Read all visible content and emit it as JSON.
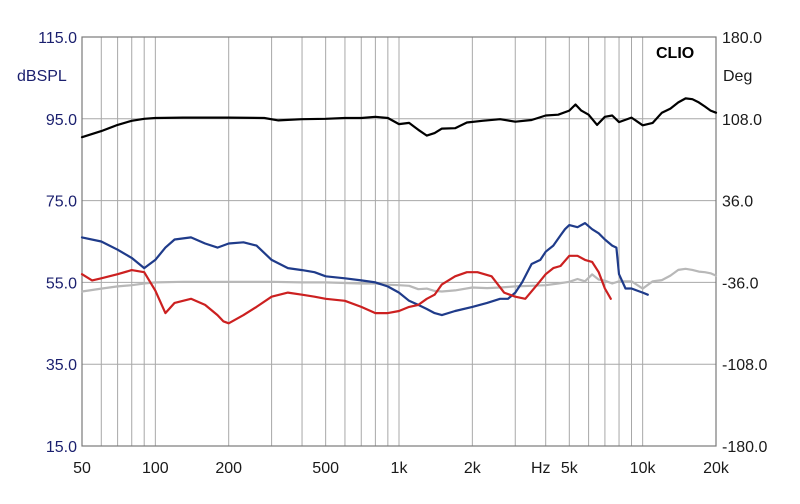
{
  "chart_data": {
    "type": "line",
    "brand_label": "CLIO",
    "x_scale": "log",
    "xlim": [
      50,
      20000
    ],
    "x_ticks": [
      {
        "value": 50,
        "label": "50"
      },
      {
        "value": 100,
        "label": "100"
      },
      {
        "value": 200,
        "label": "200"
      },
      {
        "value": 500,
        "label": "500"
      },
      {
        "value": 1000,
        "label": "1k"
      },
      {
        "value": 2000,
        "label": "2k"
      },
      {
        "value": 5000,
        "label": "5k"
      },
      {
        "value": 10000,
        "label": "10k"
      },
      {
        "value": 20000,
        "label": "20k"
      }
    ],
    "xlabel": "Hz",
    "y_left": {
      "unit": "dBSPL",
      "lim": [
        15,
        115
      ],
      "ticks": [
        "115.0",
        "95.0",
        "75.0",
        "55.0",
        "35.0",
        "15.0"
      ]
    },
    "y_right": {
      "unit": "Deg",
      "lim": [
        -180,
        180
      ],
      "ticks": [
        "180.0",
        "108.0",
        "36.0",
        "-36.0",
        "-108.0",
        "-180.0"
      ]
    },
    "grid": true,
    "colors": {
      "grid": "#a8a8a8",
      "frame": "#7a7a7a",
      "series_black": "#000000",
      "series_blue": "#1f3b8a",
      "series_red": "#cc2020",
      "series_gray": "#b8b8b8"
    },
    "series": [
      {
        "color_key": "series_black",
        "x": [
          50,
          60,
          70,
          80,
          90,
          100,
          130,
          200,
          280,
          320,
          400,
          500,
          600,
          700,
          800,
          900,
          1000,
          1100,
          1200,
          1300,
          1400,
          1500,
          1700,
          1900,
          2200,
          2600,
          3000,
          3500,
          4000,
          4500,
          5000,
          5300,
          5600,
          6000,
          6500,
          7000,
          7500,
          8000,
          9000,
          10000,
          11000,
          12000,
          13000,
          14000,
          15000,
          16000,
          17000,
          18000,
          19000,
          20000
        ],
        "y": [
          90.5,
          92.0,
          93.5,
          94.5,
          95.0,
          95.2,
          95.3,
          95.3,
          95.2,
          94.6,
          94.9,
          95.0,
          95.2,
          95.2,
          95.5,
          95.2,
          93.7,
          94.0,
          92.3,
          90.9,
          91.5,
          92.6,
          92.7,
          94.1,
          94.5,
          94.9,
          94.3,
          94.7,
          95.8,
          96.0,
          97.0,
          98.5,
          97.0,
          96.0,
          93.5,
          95.5,
          95.8,
          94.2,
          95.3,
          93.4,
          94.0,
          96.5,
          97.5,
          99.0,
          100.0,
          99.8,
          99.0,
          98.0,
          97.0,
          96.5
        ]
      },
      {
        "color_key": "series_blue",
        "x": [
          50,
          60,
          70,
          80,
          90,
          100,
          110,
          120,
          140,
          160,
          180,
          200,
          230,
          260,
          300,
          350,
          400,
          450,
          500,
          600,
          700,
          800,
          900,
          1000,
          1100,
          1200,
          1300,
          1400,
          1500,
          1700,
          2000,
          2300,
          2600,
          2800,
          3000,
          3200,
          3500,
          3800,
          4000,
          4300,
          4600,
          4800,
          5000,
          5400,
          5800,
          6200,
          6600,
          7000,
          7500,
          7800,
          8000,
          8500,
          9000,
          9500,
          10000,
          10500
        ],
        "y": [
          66.0,
          65.0,
          63.0,
          61.0,
          58.5,
          60.5,
          63.5,
          65.5,
          66.0,
          64.5,
          63.5,
          64.5,
          64.8,
          64.0,
          60.5,
          58.5,
          58.0,
          57.5,
          56.5,
          56.0,
          55.5,
          55.0,
          54.0,
          52.5,
          50.5,
          49.5,
          48.5,
          47.5,
          47.0,
          48.0,
          49.0,
          50.0,
          51.0,
          51.0,
          52.5,
          55.0,
          59.5,
          60.5,
          62.5,
          64.0,
          66.5,
          68.0,
          69.0,
          68.5,
          69.5,
          68.0,
          67.0,
          65.5,
          64.0,
          63.5,
          57.0,
          53.5,
          53.5,
          53.0,
          52.5,
          52.0
        ]
      },
      {
        "color_key": "series_red",
        "x": [
          50,
          55,
          60,
          70,
          80,
          90,
          100,
          110,
          120,
          140,
          160,
          180,
          190,
          200,
          230,
          260,
          300,
          350,
          400,
          450,
          500,
          600,
          700,
          800,
          900,
          1000,
          1100,
          1200,
          1300,
          1400,
          1500,
          1700,
          1900,
          2100,
          2400,
          2700,
          3000,
          3300,
          3700,
          4000,
          4300,
          4600,
          5000,
          5400,
          5800,
          6200,
          6600,
          7000,
          7400
        ],
        "y": [
          57.0,
          55.5,
          56.0,
          57.0,
          58.0,
          57.5,
          53.0,
          47.5,
          50.0,
          51.0,
          49.5,
          47.0,
          45.5,
          45.0,
          47.0,
          49.0,
          51.5,
          52.5,
          52.0,
          51.5,
          51.0,
          50.5,
          49.0,
          47.5,
          47.5,
          48.0,
          49.0,
          49.5,
          51.0,
          52.0,
          54.5,
          56.5,
          57.5,
          57.5,
          56.5,
          52.5,
          51.5,
          51.0,
          54.5,
          57.0,
          58.5,
          59.0,
          61.5,
          61.5,
          60.5,
          60.0,
          57.5,
          53.5,
          51.0
        ]
      },
      {
        "color_key": "series_gray",
        "x": [
          50,
          60,
          70,
          80,
          90,
          100,
          130,
          200,
          300,
          400,
          500,
          600,
          700,
          800,
          900,
          1000,
          1100,
          1200,
          1300,
          1400,
          1500,
          1700,
          2000,
          2300,
          2600,
          3000,
          3500,
          4000,
          4500,
          5000,
          5400,
          5800,
          6200,
          6600,
          7000,
          7500,
          8000,
          9000,
          10000,
          11000,
          12000,
          13000,
          14000,
          15000,
          16000,
          17000,
          18000,
          19000,
          20000
        ],
        "y": [
          -44.0,
          -41.5,
          -39.5,
          -38.5,
          -37.0,
          -36.0,
          -35.5,
          -35.5,
          -35.5,
          -36.0,
          -36.0,
          -36.5,
          -37.0,
          -37.0,
          -38.0,
          -38.5,
          -39.0,
          -42.0,
          -41.5,
          -43.5,
          -44.0,
          -43.0,
          -40.5,
          -41.0,
          -40.5,
          -39.5,
          -39.0,
          -38.5,
          -37.0,
          -35.5,
          -33.0,
          -35.0,
          -29.0,
          -33.5,
          -34.5,
          -37.0,
          -35.0,
          -35.0,
          -41.5,
          -35.0,
          -34.0,
          -30.0,
          -25.0,
          -24.0,
          -25.0,
          -26.5,
          -27.0,
          -28.0,
          -30.0
        ]
      }
    ]
  }
}
